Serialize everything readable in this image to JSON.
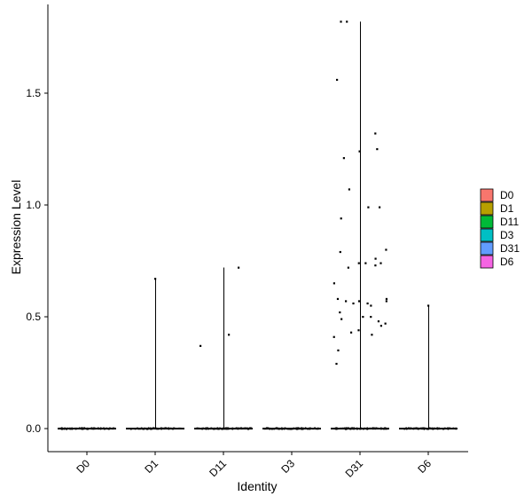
{
  "chart_data": {
    "type": "violin",
    "xlabel": "Identity",
    "ylabel": "Expression Level",
    "categories": [
      "D0",
      "D1",
      "D11",
      "D3",
      "D31",
      "D6"
    ],
    "colors": {
      "D0": "#F8766D",
      "D1": "#B79F00",
      "D11": "#00BA38",
      "D3": "#00BFC4",
      "D31": "#619CFF",
      "D6": "#F564E3"
    },
    "ylim": [
      -0.1,
      1.88
    ],
    "yticks": [
      0.0,
      0.5,
      1.0,
      1.5
    ],
    "ytick_labels": [
      "0.0",
      "0.5",
      "1.0",
      "1.5"
    ],
    "legend": {
      "position": "right",
      "entries": [
        "D0",
        "D1",
        "D11",
        "D3",
        "D31",
        "D6"
      ]
    },
    "grid": false,
    "max_values": [
      0.0,
      0.67,
      0.72,
      0.0,
      1.82,
      0.55
    ],
    "jitter_points": {
      "D1": [
        0.67
      ],
      "D11": [
        0.37,
        0.42,
        0.72
      ],
      "D6": [
        0.55
      ],
      "D31": [
        1.82,
        1.82,
        1.56,
        1.32,
        1.25,
        1.24,
        1.21,
        1.07,
        0.99,
        0.99,
        0.94,
        0.8,
        0.79,
        0.76,
        0.74,
        0.74,
        0.74,
        0.73,
        0.72,
        0.65,
        0.58,
        0.58,
        0.57,
        0.57,
        0.57,
        0.56,
        0.56,
        0.55,
        0.52,
        0.5,
        0.5,
        0.49,
        0.48,
        0.47,
        0.46,
        0.44,
        0.43,
        0.42,
        0.41,
        0.35,
        0.29
      ]
    }
  }
}
